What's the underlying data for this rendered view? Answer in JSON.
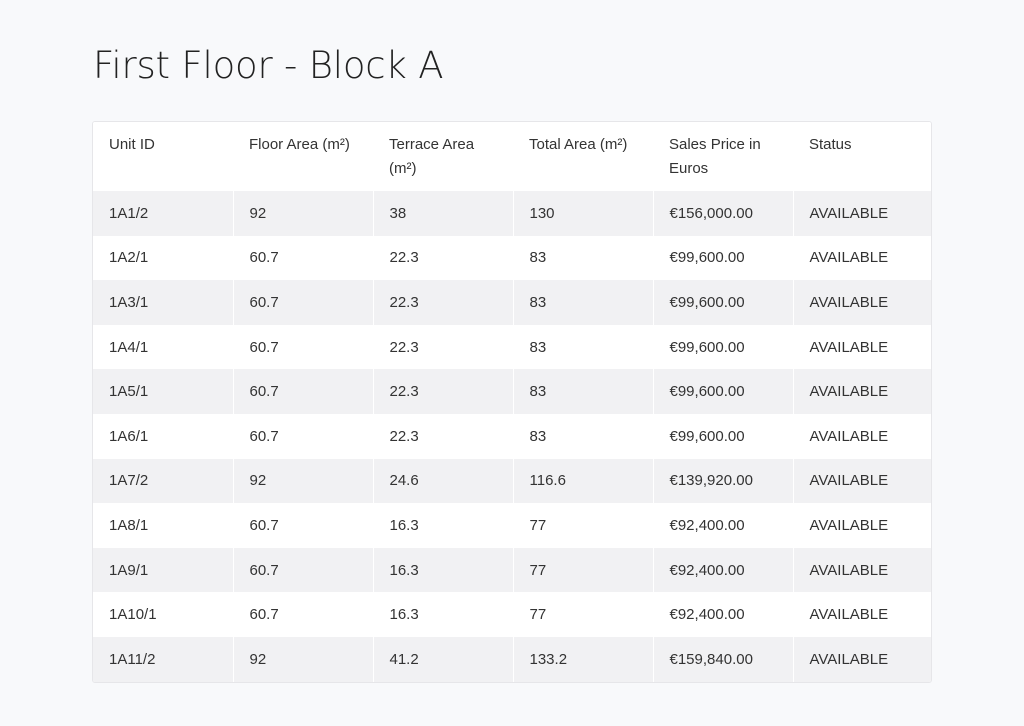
{
  "title": "First Floor - Block A",
  "table": {
    "columns": [
      "Unit ID",
      "Floor Area (m²)",
      "Terrace Area (m²)",
      "Total Area (m²)",
      "Sales Price in Euros",
      "Status"
    ],
    "rows": [
      [
        "1A1/2",
        "92",
        "38",
        "130",
        "€156,000.00",
        "AVAILABLE"
      ],
      [
        "1A2/1",
        "60.7",
        "22.3",
        "83",
        "€99,600.00",
        "AVAILABLE"
      ],
      [
        "1A3/1",
        "60.7",
        "22.3",
        "83",
        "€99,600.00",
        "AVAILABLE"
      ],
      [
        "1A4/1",
        "60.7",
        "22.3",
        "83",
        "€99,600.00",
        "AVAILABLE"
      ],
      [
        "1A5/1",
        "60.7",
        "22.3",
        "83",
        "€99,600.00",
        "AVAILABLE"
      ],
      [
        "1A6/1",
        "60.7",
        "22.3",
        "83",
        "€99,600.00",
        "AVAILABLE"
      ],
      [
        "1A7/2",
        "92",
        "24.6",
        "116.6",
        "€139,920.00",
        "AVAILABLE"
      ],
      [
        "1A8/1",
        "60.7",
        "16.3",
        "77",
        "€92,400.00",
        "AVAILABLE"
      ],
      [
        "1A9/1",
        "60.7",
        "16.3",
        "77",
        "€92,400.00",
        "AVAILABLE"
      ],
      [
        "1A10/1",
        "60.7",
        "16.3",
        "77",
        "€92,400.00",
        "AVAILABLE"
      ],
      [
        "1A11/2",
        "92",
        "41.2",
        "133.2",
        "€159,840.00",
        "AVAILABLE"
      ]
    ]
  }
}
